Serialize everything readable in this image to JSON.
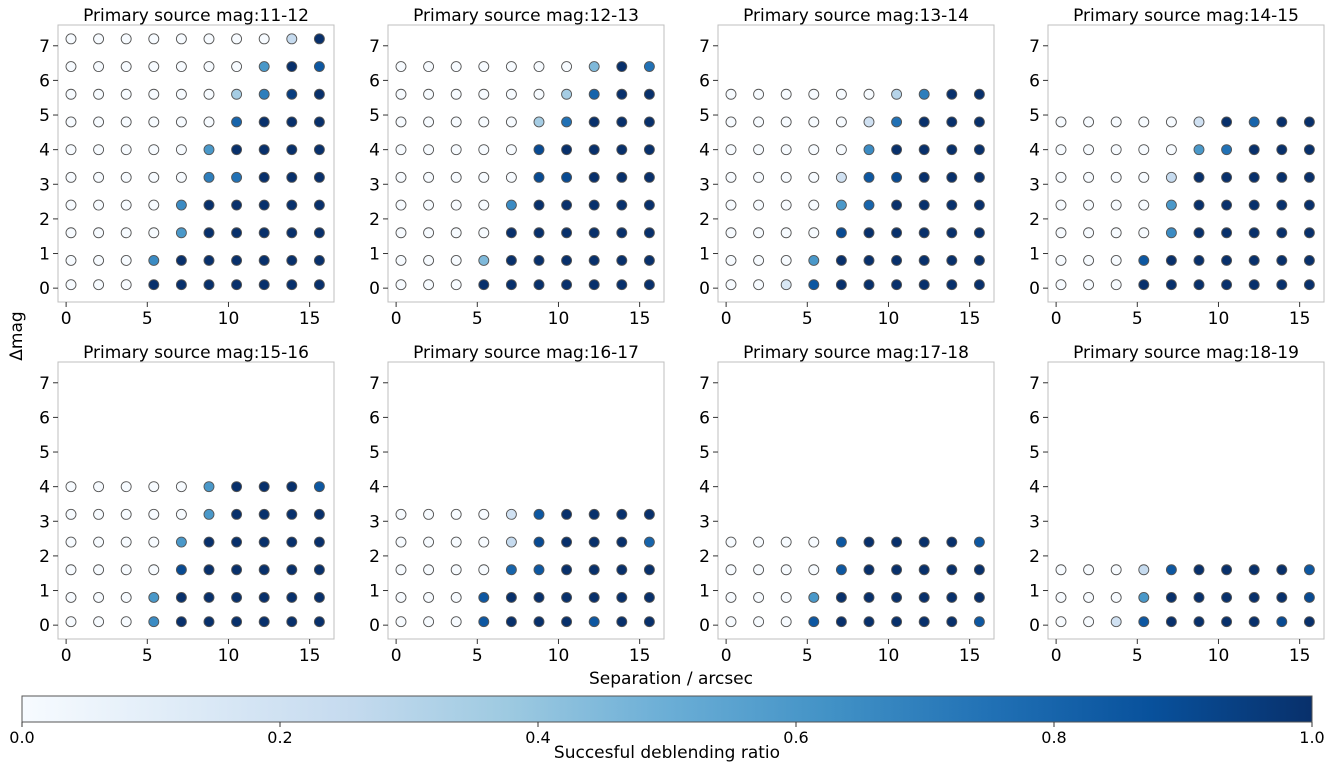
{
  "chart_data": {
    "type": "scatter",
    "shared": {
      "xlabel": "Separation / arcsec",
      "ylabel": "Δmag",
      "xlim": [
        -0.5,
        16.5
      ],
      "ylim": [
        -0.4,
        7.6
      ],
      "xticks": [
        "0",
        "5",
        "10",
        "15"
      ],
      "yticks": [
        "0",
        "1",
        "2",
        "3",
        "4",
        "5",
        "6",
        "7"
      ],
      "x_grid": [
        0.3,
        2.0,
        3.7,
        5.4,
        7.1,
        8.8,
        10.5,
        12.2,
        13.9,
        15.6
      ],
      "y_grid": [
        0.1,
        0.8,
        1.6,
        2.4,
        3.2,
        4.0,
        4.8,
        5.6,
        6.4,
        7.2
      ],
      "grid": false
    },
    "panels": [
      {
        "title": "Primary source mag:11-12",
        "ratio": [
          [
            0,
            0,
            0,
            1,
            1,
            1,
            1,
            1,
            1,
            1
          ],
          [
            0,
            0,
            0,
            0.65,
            1,
            1,
            1,
            1,
            1,
            1
          ],
          [
            0,
            0,
            0,
            0,
            0.6,
            1,
            1,
            1,
            1,
            1
          ],
          [
            0,
            0,
            0,
            0,
            0.65,
            1,
            1,
            1,
            1,
            1
          ],
          [
            0,
            0,
            0,
            0,
            0,
            0.7,
            0.75,
            1,
            1,
            1
          ],
          [
            0,
            0,
            0,
            0,
            0,
            0.6,
            1,
            1,
            1,
            1
          ],
          [
            0,
            0,
            0,
            0,
            0,
            0,
            0.8,
            1,
            1,
            1
          ],
          [
            0,
            0,
            0,
            0,
            0,
            0,
            0.35,
            0.7,
            0.95,
            1
          ],
          [
            0,
            0,
            0,
            0,
            0,
            0,
            0,
            0.6,
            1,
            0.85
          ],
          [
            0,
            0,
            0,
            0,
            0,
            0,
            0,
            0,
            0.25,
            1
          ]
        ]
      },
      {
        "title": "Primary source mag:12-13",
        "ratio": [
          [
            0,
            0,
            0,
            1,
            1,
            1,
            1,
            1,
            1,
            1
          ],
          [
            0,
            0,
            0,
            0.45,
            1,
            1,
            1,
            1,
            1,
            1
          ],
          [
            0,
            0,
            0,
            0,
            1,
            1,
            1,
            1,
            1,
            1
          ],
          [
            0,
            0,
            0,
            0,
            0.65,
            1,
            1,
            1,
            1,
            1
          ],
          [
            0,
            0,
            0,
            0,
            0,
            0.9,
            0.9,
            1,
            1,
            1
          ],
          [
            0,
            0,
            0,
            0,
            0,
            0.9,
            1,
            1,
            1,
            1
          ],
          [
            0,
            0,
            0,
            0,
            0,
            0.35,
            0.75,
            1,
            1,
            1
          ],
          [
            0,
            0,
            0,
            0,
            0,
            0,
            0.35,
            0.8,
            1,
            1
          ],
          [
            0,
            0,
            0,
            0,
            0,
            0,
            0,
            0.45,
            1,
            0.75
          ],
          null
        ]
      },
      {
        "title": "Primary source mag:13-14",
        "ratio": [
          [
            0,
            0,
            0.15,
            0.85,
            1,
            1,
            1,
            1,
            1,
            1
          ],
          [
            0,
            0,
            0,
            0.6,
            1,
            1,
            1,
            1,
            1,
            1
          ],
          [
            0,
            0,
            0,
            0,
            0.9,
            1,
            1,
            1,
            1,
            1
          ],
          [
            0,
            0,
            0,
            0,
            0.6,
            0.8,
            1,
            1,
            1,
            1
          ],
          [
            0,
            0,
            0,
            0,
            0.2,
            0.85,
            0.9,
            1,
            1,
            1
          ],
          [
            0,
            0,
            0,
            0,
            0,
            0.65,
            1,
            1,
            1,
            1
          ],
          [
            0,
            0,
            0,
            0,
            0,
            0.2,
            0.75,
            1,
            1,
            1
          ],
          [
            0,
            0,
            0,
            0,
            0,
            0,
            0.3,
            0.7,
            1,
            1
          ],
          null,
          null
        ]
      },
      {
        "title": "Primary source mag:14-15",
        "ratio": [
          [
            0,
            0,
            0,
            1,
            1,
            1,
            1,
            1,
            1,
            1
          ],
          [
            0,
            0,
            0,
            0.85,
            1,
            1,
            1,
            1,
            1,
            1
          ],
          [
            0,
            0,
            0,
            0,
            0.65,
            1,
            1,
            1,
            1,
            1
          ],
          [
            0,
            0,
            0,
            0,
            0.6,
            1,
            1,
            1,
            1,
            1
          ],
          [
            0,
            0,
            0,
            0,
            0.25,
            1,
            1,
            1,
            1,
            1
          ],
          [
            0,
            0,
            0,
            0,
            0,
            0.6,
            0.75,
            1,
            1,
            1
          ],
          [
            0,
            0,
            0,
            0,
            0,
            0.2,
            1,
            0.8,
            1,
            1
          ],
          null,
          null,
          null
        ]
      },
      {
        "title": "Primary source mag:15-16",
        "ratio": [
          [
            0,
            0,
            0,
            0.65,
            1,
            1,
            1,
            1,
            1,
            1
          ],
          [
            0,
            0,
            0,
            0.6,
            1,
            1,
            1,
            1,
            1,
            1
          ],
          [
            0,
            0,
            0,
            0,
            0.9,
            1,
            1,
            1,
            1,
            1
          ],
          [
            0,
            0,
            0,
            0,
            0.6,
            1,
            1,
            1,
            1,
            1
          ],
          [
            0,
            0,
            0,
            0,
            0,
            0.6,
            1,
            1,
            1,
            1
          ],
          [
            0,
            0,
            0,
            0,
            0,
            0.6,
            1,
            1,
            1,
            0.85
          ],
          null,
          null,
          null,
          null
        ]
      },
      {
        "title": "Primary source mag:16-17",
        "ratio": [
          [
            0,
            0,
            0,
            0.85,
            1,
            1,
            1,
            0.85,
            1,
            1
          ],
          [
            0,
            0,
            0,
            0.85,
            1,
            1,
            1,
            1,
            1,
            1
          ],
          [
            0,
            0,
            0,
            0,
            0.8,
            0.85,
            1,
            1,
            1,
            1
          ],
          [
            0,
            0,
            0,
            0,
            0.25,
            0.9,
            1,
            1,
            1,
            0.8
          ],
          [
            0,
            0,
            0,
            0,
            0.2,
            0.85,
            1,
            1,
            1,
            1
          ],
          null,
          null,
          null,
          null,
          null
        ]
      },
      {
        "title": "Primary source mag:17-18",
        "ratio": [
          [
            0,
            0,
            0,
            0.85,
            1,
            1,
            1,
            1,
            1,
            0.85
          ],
          [
            0,
            0,
            0,
            0.6,
            1,
            1,
            1,
            1,
            1,
            1
          ],
          [
            0,
            0,
            0,
            0,
            0.85,
            1,
            1,
            1,
            1,
            1
          ],
          [
            0,
            0,
            0,
            0,
            0.85,
            1,
            1,
            1,
            1,
            0.85
          ],
          null,
          null,
          null,
          null,
          null,
          null
        ]
      },
      {
        "title": "Primary source mag:18-19",
        "ratio": [
          [
            0,
            0,
            0.2,
            0.85,
            1,
            1,
            1,
            1,
            0.9,
            1
          ],
          [
            0,
            0,
            0,
            0.6,
            1,
            1,
            1,
            1,
            1,
            0.9
          ],
          [
            0,
            0,
            0,
            0.25,
            0.85,
            1,
            1,
            1,
            1,
            0.85
          ],
          null,
          null,
          null,
          null,
          null,
          null,
          null
        ]
      }
    ],
    "colorbar": {
      "label": "Succesful deblending ratio",
      "range": [
        0.0,
        1.0
      ],
      "ticks": [
        "0.0",
        "0.2",
        "0.4",
        "0.6",
        "0.8",
        "1.0"
      ],
      "colormap": "Blues",
      "colors": [
        "#f7fbff",
        "#deebf7",
        "#c6dbef",
        "#9ecae1",
        "#6baed6",
        "#4292c6",
        "#2171b5",
        "#08519c",
        "#08306b"
      ]
    }
  }
}
